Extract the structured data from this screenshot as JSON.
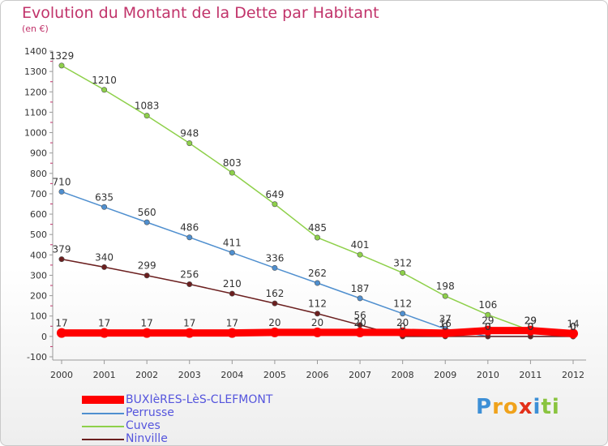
{
  "header": {
    "title": "Evolution du Montant de la Dette par Habitant",
    "unit": "(en €)"
  },
  "logo": {
    "letters": [
      {
        "char": "P",
        "color": "#3d8fd6"
      },
      {
        "char": "r",
        "color": "#f0a21b"
      },
      {
        "char": "o",
        "color": "#f0a21b"
      },
      {
        "char": "x",
        "color": "#e3301a"
      },
      {
        "char": "i",
        "color": "#3d8fd6"
      },
      {
        "char": "t",
        "color": "#8ac43f"
      },
      {
        "char": "i",
        "color": "#8ac43f"
      }
    ]
  },
  "chart_data": {
    "type": "line",
    "title": "Evolution du Montant de la Dette par Habitant",
    "ylabel": "(en €)",
    "xlabel": "",
    "x": [
      2000,
      2001,
      2002,
      2003,
      2004,
      2005,
      2006,
      2007,
      2008,
      2009,
      2010,
      2011,
      2012
    ],
    "ylim": [
      -100,
      1400
    ],
    "yticks": [
      -100,
      0,
      100,
      200,
      300,
      400,
      500,
      600,
      700,
      800,
      900,
      1000,
      1100,
      1200,
      1300,
      1400
    ],
    "grid": false,
    "legend_position": "bottom-left",
    "series": [
      {
        "name": "Perrusse",
        "color": "#4f8fcf",
        "values": [
          710,
          635,
          560,
          486,
          411,
          336,
          262,
          187,
          112,
          37,
          0,
          0,
          0
        ],
        "labels": [
          "710",
          "635",
          "560",
          "486",
          "411",
          "336",
          "262",
          "187",
          "112",
          "37",
          "0",
          "0",
          "0"
        ]
      },
      {
        "name": "Cuves",
        "color": "#8ed04a",
        "values": [
          1329,
          1210,
          1083,
          948,
          803,
          649,
          485,
          401,
          312,
          198,
          106,
          29,
          0
        ],
        "labels": [
          "1329",
          "1210",
          "1083",
          "948",
          "803",
          "649",
          "485",
          "401",
          "312",
          "198",
          "106",
          "29",
          "0"
        ]
      },
      {
        "name": "Ninville",
        "color": "#6b1f1f",
        "values": [
          379,
          340,
          299,
          256,
          210,
          162,
          112,
          56,
          0,
          0,
          0,
          0,
          0
        ],
        "labels": [
          "379",
          "340",
          "299",
          "256",
          "210",
          "162",
          "112",
          "56",
          "0",
          "0",
          "0",
          "0",
          "0"
        ]
      },
      {
        "name": "BUXIèRES-LèS-CLEFMONT",
        "color": "#ff0000",
        "highlight": true,
        "values": [
          17,
          17,
          17,
          17,
          17,
          20,
          20,
          20,
          20,
          16,
          29,
          29,
          14
        ],
        "labels": [
          "17",
          "17",
          "17",
          "17",
          "17",
          "20",
          "20",
          "20",
          "20",
          "16",
          "29",
          "29",
          "14"
        ]
      }
    ],
    "legend_order": [
      "BUXIèRES-LèS-CLEFMONT",
      "Perrusse",
      "Cuves",
      "Ninville"
    ]
  }
}
